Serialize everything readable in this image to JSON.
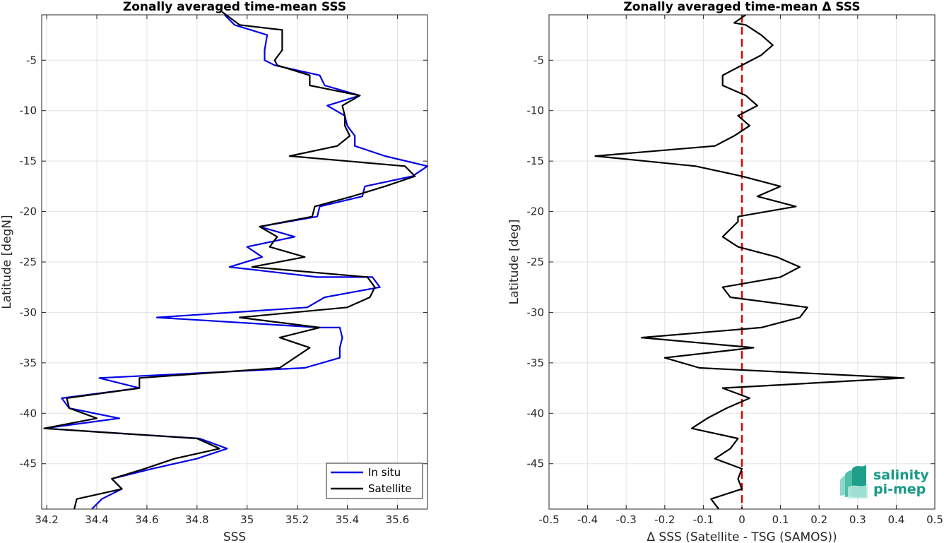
{
  "chart_data": [
    {
      "type": "line",
      "title": "Zonally averaged time-mean SSS",
      "xlabel": "SSS",
      "ylabel": "Latitude [degN]",
      "xlim": [
        34.18,
        35.72
      ],
      "ylim": [
        -49.5,
        -0.5
      ],
      "xticks": [
        34.2,
        34.4,
        34.6,
        34.8,
        35,
        35.2,
        35.4,
        35.6
      ],
      "xtick_labels": [
        "34.2",
        "34.4",
        "34.6",
        "34.8",
        "35",
        "35.2",
        "35.4",
        "35.6"
      ],
      "yticks": [
        -5,
        -10,
        -15,
        -20,
        -25,
        -30,
        -35,
        -40,
        -45
      ],
      "ytick_labels": [
        "-5",
        "-10",
        "-15",
        "-20",
        "-25",
        "-30",
        "-35",
        "-40",
        "-45"
      ],
      "grid": true,
      "legend": "bottom-right",
      "series": [
        {
          "name": "In situ",
          "color": "#0000e6",
          "points": [
            [
              34.91,
              -0.5
            ],
            [
              34.95,
              -1.5
            ],
            [
              35.08,
              -2.5
            ],
            [
              35.07,
              -4.0
            ],
            [
              35.07,
              -5.0
            ],
            [
              35.11,
              -5.5
            ],
            [
              35.29,
              -6.5
            ],
            [
              35.31,
              -7.5
            ],
            [
              35.45,
              -8.5
            ],
            [
              35.32,
              -9.5
            ],
            [
              35.39,
              -10.5
            ],
            [
              35.4,
              -11.5
            ],
            [
              35.43,
              -12.5
            ],
            [
              35.43,
              -13.5
            ],
            [
              35.55,
              -14.5
            ],
            [
              35.72,
              -15.5
            ],
            [
              35.66,
              -16.5
            ],
            [
              35.47,
              -17.5
            ],
            [
              35.46,
              -18.5
            ],
            [
              35.29,
              -19.5
            ],
            [
              35.28,
              -20.5
            ],
            [
              35.05,
              -21.5
            ],
            [
              35.19,
              -22.5
            ],
            [
              35.0,
              -23.5
            ],
            [
              35.06,
              -24.5
            ],
            [
              34.93,
              -25.5
            ],
            [
              35.28,
              -26.5
            ],
            [
              35.5,
              -26.5
            ],
            [
              35.53,
              -27.5
            ],
            [
              35.31,
              -28.5
            ],
            [
              35.24,
              -29.5
            ],
            [
              34.64,
              -30.5
            ],
            [
              35.29,
              -31.5
            ],
            [
              35.37,
              -31.5
            ],
            [
              35.38,
              -32.5
            ],
            [
              35.37,
              -33.5
            ],
            [
              35.37,
              -34.5
            ],
            [
              35.23,
              -35.5
            ],
            [
              34.41,
              -36.5
            ],
            [
              34.57,
              -37.5
            ],
            [
              34.26,
              -38.5
            ],
            [
              34.29,
              -39.5
            ],
            [
              34.49,
              -40.5
            ],
            [
              34.19,
              -41.5
            ],
            [
              34.81,
              -42.5
            ],
            [
              34.92,
              -43.5
            ],
            [
              34.8,
              -44.5
            ],
            [
              34.62,
              -45.5
            ],
            [
              34.46,
              -46.5
            ],
            [
              34.5,
              -47.5
            ],
            [
              34.42,
              -48.5
            ],
            [
              34.38,
              -49.5
            ]
          ]
        },
        {
          "name": "Satellite",
          "color": "#000000",
          "points": [
            [
              34.9,
              -0.2
            ],
            [
              34.97,
              -1.5
            ],
            [
              35.14,
              -2.0
            ],
            [
              35.14,
              -4.0
            ],
            [
              35.11,
              -5.0
            ],
            [
              35.12,
              -5.5
            ],
            [
              35.25,
              -6.5
            ],
            [
              35.25,
              -7.5
            ],
            [
              35.45,
              -8.5
            ],
            [
              35.38,
              -9.5
            ],
            [
              35.39,
              -10.5
            ],
            [
              35.39,
              -11.5
            ],
            [
              35.41,
              -12.5
            ],
            [
              35.36,
              -13.5
            ],
            [
              35.17,
              -14.5
            ],
            [
              35.63,
              -15.5
            ],
            [
              35.67,
              -16.5
            ],
            [
              35.55,
              -17.5
            ],
            [
              35.42,
              -18.5
            ],
            [
              35.27,
              -19.5
            ],
            [
              35.26,
              -20.5
            ],
            [
              35.05,
              -21.5
            ],
            [
              35.12,
              -22.5
            ],
            [
              35.09,
              -23.5
            ],
            [
              35.23,
              -24.5
            ],
            [
              35.02,
              -25.5
            ],
            [
              35.48,
              -26.5
            ],
            [
              35.51,
              -27.5
            ],
            [
              35.49,
              -28.5
            ],
            [
              35.4,
              -29.5
            ],
            [
              34.97,
              -30.5
            ],
            [
              35.29,
              -31.5
            ],
            [
              35.13,
              -32.5
            ],
            [
              35.25,
              -33.5
            ],
            [
              35.19,
              -34.5
            ],
            [
              35.13,
              -35.5
            ],
            [
              34.57,
              -36.5
            ],
            [
              34.57,
              -37.5
            ],
            [
              34.28,
              -38.5
            ],
            [
              34.29,
              -39.5
            ],
            [
              34.4,
              -40.5
            ],
            [
              34.19,
              -41.5
            ],
            [
              34.8,
              -42.5
            ],
            [
              34.89,
              -43.5
            ],
            [
              34.71,
              -44.5
            ],
            [
              34.59,
              -45.5
            ],
            [
              34.46,
              -46.5
            ],
            [
              34.5,
              -47.5
            ],
            [
              34.32,
              -48.5
            ],
            [
              34.31,
              -49.5
            ]
          ]
        }
      ]
    },
    {
      "type": "line",
      "title": "Zonally averaged time-mean Δ SSS",
      "xlabel": "Δ SSS (Satellite - TSG (SAMOS))",
      "ylabel": "Latitude [deg]",
      "xlim": [
        -0.5,
        0.5
      ],
      "ylim": [
        -49.5,
        -0.5
      ],
      "xticks": [
        -0.5,
        -0.4,
        -0.3,
        -0.2,
        -0.1,
        0,
        0.1,
        0.2,
        0.3,
        0.4,
        0.5
      ],
      "xtick_labels": [
        "-0.5",
        "-0.4",
        "-0.3",
        "-0.2",
        "-0.1",
        "0",
        "0.1",
        "0.2",
        "0.3",
        "0.4",
        "0.5"
      ],
      "yticks": [
        -5,
        -10,
        -15,
        -20,
        -25,
        -30,
        -35,
        -40,
        -45
      ],
      "ytick_labels": [
        "-5",
        "-10",
        "-15",
        "-20",
        "-25",
        "-30",
        "-35",
        "-40",
        "-45"
      ],
      "grid": true,
      "reference_line": {
        "x": 0,
        "color": "#e00000",
        "style": "dashed"
      },
      "series": [
        {
          "color": "#000000",
          "points": [
            [
              0.01,
              -0.5
            ],
            [
              -0.02,
              -1.3
            ],
            [
              0.01,
              -1.5
            ],
            [
              0.05,
              -2.5
            ],
            [
              0.08,
              -3.5
            ],
            [
              0.05,
              -4.5
            ],
            [
              0.0,
              -5.5
            ],
            [
              -0.05,
              -6.5
            ],
            [
              -0.05,
              -7.5
            ],
            [
              0.01,
              -8.5
            ],
            [
              0.04,
              -9.5
            ],
            [
              -0.01,
              -10.5
            ],
            [
              0.02,
              -11.5
            ],
            [
              -0.02,
              -12.5
            ],
            [
              -0.07,
              -13.5
            ],
            [
              -0.38,
              -14.5
            ],
            [
              -0.12,
              -15.5
            ],
            [
              0.0,
              -16.5
            ],
            [
              0.1,
              -17.5
            ],
            [
              0.04,
              -18.5
            ],
            [
              0.14,
              -19.5
            ],
            [
              -0.01,
              -20.5
            ],
            [
              -0.01,
              -21.0
            ],
            [
              -0.05,
              -22.5
            ],
            [
              -0.01,
              -23.5
            ],
            [
              0.09,
              -24.5
            ],
            [
              0.15,
              -25.5
            ],
            [
              0.1,
              -26.5
            ],
            [
              -0.05,
              -27.5
            ],
            [
              -0.03,
              -28.5
            ],
            [
              0.17,
              -29.5
            ],
            [
              0.15,
              -30.5
            ],
            [
              0.05,
              -31.5
            ],
            [
              -0.26,
              -32.5
            ],
            [
              0.03,
              -33.5
            ],
            [
              -0.2,
              -34.5
            ],
            [
              -0.11,
              -35.5
            ],
            [
              0.42,
              -36.5
            ],
            [
              -0.05,
              -37.5
            ],
            [
              0.02,
              -38.5
            ],
            [
              -0.04,
              -39.5
            ],
            [
              -0.09,
              -40.5
            ],
            [
              -0.13,
              -41.5
            ],
            [
              -0.01,
              -42.5
            ],
            [
              -0.03,
              -43.5
            ],
            [
              -0.07,
              -44.5
            ],
            [
              0.0,
              -45.5
            ],
            [
              -0.01,
              -46.5
            ],
            [
              0.0,
              -47.5
            ],
            [
              -0.08,
              -48.5
            ],
            [
              -0.06,
              -49.5
            ]
          ]
        }
      ]
    }
  ],
  "logo": {
    "line1": "salinity",
    "line2": "pi-mep"
  }
}
